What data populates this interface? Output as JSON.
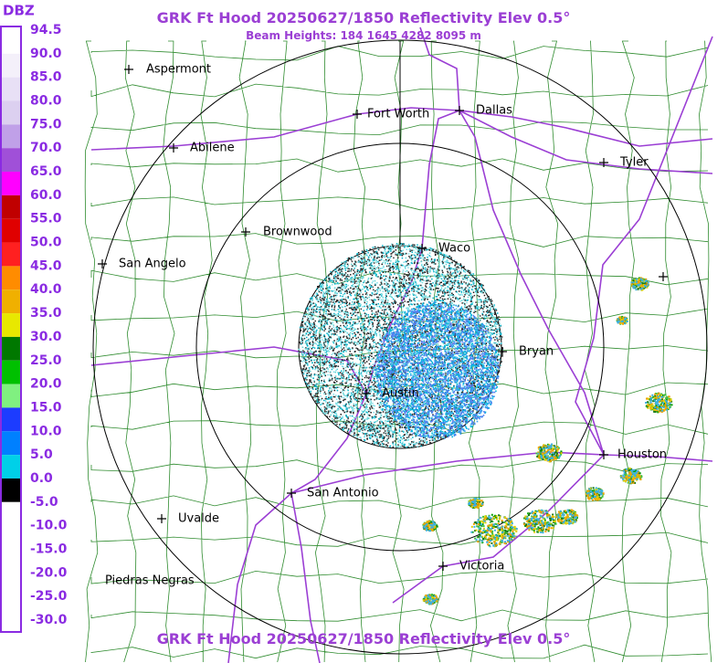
{
  "header": {
    "title": "GRK Ft Hood 20250627/1850 Reflectivity Elev 0.5°",
    "subtitle": "Beam Heights: 184 1645 4282 8095 m"
  },
  "legend": {
    "unit": "DBZ",
    "labels": [
      "94.5",
      "90.0",
      "85.0",
      "80.0",
      "75.0",
      "70.0",
      "65.0",
      "60.0",
      "55.0",
      "50.0",
      "45.0",
      "40.0",
      "35.0",
      "30.0",
      "25.0",
      "20.0",
      "15.0",
      "10.0",
      "5.0",
      "0.0",
      "-5.0",
      "-10.0",
      "-15.0",
      "-20.0",
      "-25.0",
      "-30.0"
    ]
  },
  "cities": [
    "Aspermont",
    "Fort Worth",
    "Dallas",
    "Abilene",
    "Tyler",
    "Brownwood",
    "Waco",
    "San Angelo",
    "Bryan",
    "Austin",
    "Houston",
    "San Antonio",
    "Uvalde",
    "Piedras Negras",
    "Victoria"
  ],
  "footer": {
    "title": "GRK Ft Hood 20250627/1850 Reflectivity Elev 0.5°"
  }
}
